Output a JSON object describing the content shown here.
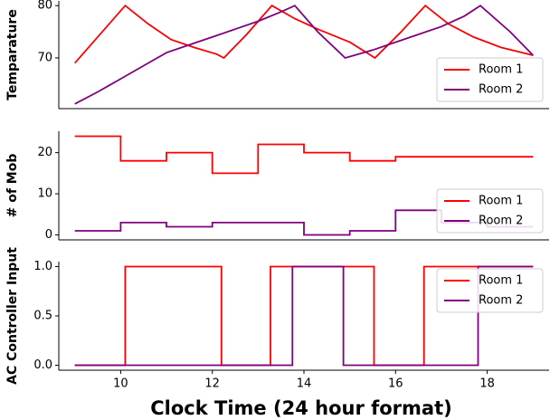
{
  "chart_data": [
    {
      "type": "line",
      "ylabel": "Temparature",
      "xlim": [
        8.65,
        19.35
      ],
      "ylim": [
        60.3,
        80.9
      ],
      "yticks": [
        70,
        80
      ],
      "legend": "lower right",
      "series": [
        {
          "name": "Room 1",
          "color": "#ff0000",
          "x": [
            9,
            10.1,
            10.6,
            11.1,
            11.6,
            12.1,
            12.25,
            12.75,
            13.3,
            13.8,
            14.3,
            15,
            15.55,
            16.1,
            16.65,
            17.15,
            17.7,
            18.3,
            19
          ],
          "values": [
            69,
            80,
            76.5,
            73.5,
            72,
            70.7,
            70,
            74.5,
            80,
            77.5,
            75.5,
            73,
            70,
            74.8,
            80,
            76.5,
            74,
            72,
            70.5
          ]
        },
        {
          "name": "Room 2",
          "color": "#800080",
          "x": [
            9,
            9.5,
            10,
            10.5,
            11,
            11.5,
            12,
            12.5,
            13,
            13.5,
            13.8,
            14.3,
            14.9,
            15.5,
            16,
            16.5,
            17,
            17.5,
            17.85,
            18.5,
            19
          ],
          "values": [
            61.2,
            63.5,
            66,
            68.5,
            71,
            72.5,
            74,
            75.5,
            77,
            78.8,
            80,
            75,
            70,
            71.5,
            73,
            74.5,
            76,
            78,
            80,
            75,
            70.5
          ]
        }
      ]
    },
    {
      "type": "line",
      "ylabel": "# of Mob",
      "xlim": [
        8.65,
        19.35
      ],
      "ylim": [
        -1.2,
        25.2
      ],
      "yticks": [
        0,
        10,
        20
      ],
      "legend": "lower right",
      "series": [
        {
          "name": "Room 1",
          "color": "#ff0000",
          "x": [
            9,
            10,
            10,
            11,
            11,
            12,
            12,
            13,
            13,
            14,
            14,
            15,
            15,
            16,
            16,
            19
          ],
          "values": [
            24,
            24,
            18,
            18,
            20,
            20,
            15,
            15,
            22,
            22,
            20,
            20,
            18,
            18,
            19,
            19
          ]
        },
        {
          "name": "Room 2",
          "color": "#800080",
          "x": [
            9,
            10,
            10,
            11,
            11,
            12,
            12,
            14,
            14,
            15,
            15,
            16,
            16,
            17,
            17,
            18,
            18,
            19
          ],
          "values": [
            1,
            1,
            3,
            3,
            2,
            2,
            3,
            3,
            0,
            0,
            1,
            1,
            6,
            6,
            3,
            3,
            2,
            2
          ]
        }
      ]
    },
    {
      "type": "line",
      "ylabel": "AC Controller Input",
      "xlabel": "Clock Time (24 hour format)",
      "xlim": [
        8.65,
        19.35
      ],
      "ylim": [
        -0.05,
        1.05
      ],
      "xticks": [
        10,
        12,
        14,
        16,
        18
      ],
      "yticks": [
        {
          "value": 0,
          "label": "0.0"
        },
        {
          "value": 0.5,
          "label": "0.5"
        },
        {
          "value": 1,
          "label": "1.0"
        }
      ],
      "legend": "upper right",
      "series": [
        {
          "name": "Room 1",
          "color": "#ff0000",
          "x": [
            9,
            10.1,
            10.1,
            12.2,
            12.2,
            13.27,
            13.27,
            15.53,
            15.53,
            16.62,
            16.62,
            19
          ],
          "values": [
            0,
            0,
            1,
            1,
            0,
            0,
            1,
            1,
            0,
            0,
            1,
            1
          ]
        },
        {
          "name": "Room 2",
          "color": "#800080",
          "x": [
            9,
            13.75,
            13.75,
            14.86,
            14.86,
            17.8,
            17.8,
            19
          ],
          "values": [
            0,
            0,
            1,
            1,
            0,
            0,
            1,
            1
          ]
        }
      ]
    }
  ]
}
